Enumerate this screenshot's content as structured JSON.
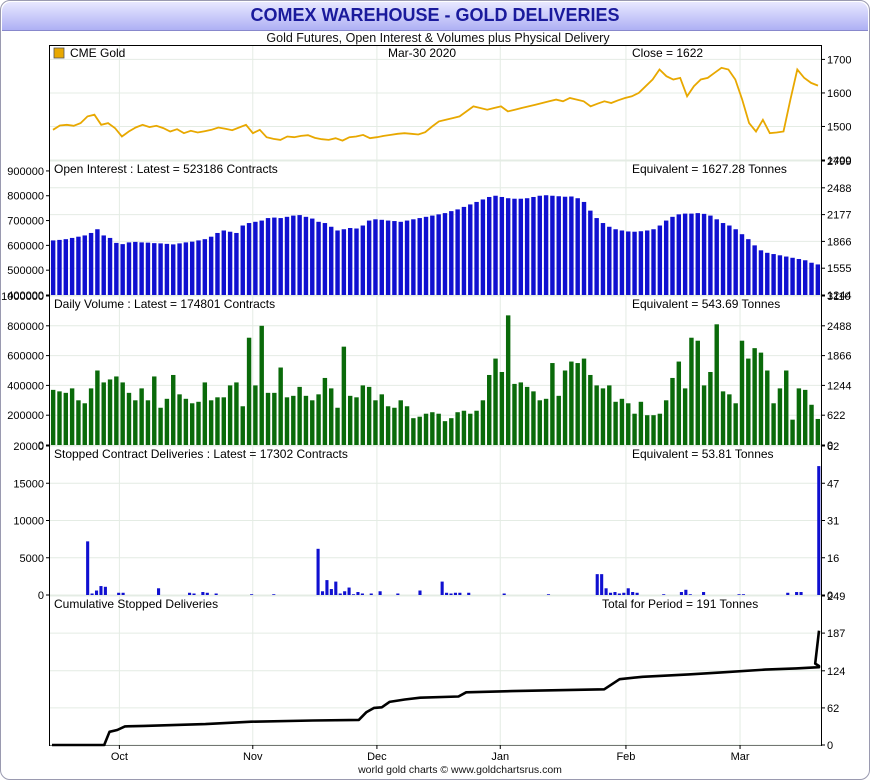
{
  "header": {
    "title": "COMEX WAREHOUSE - GOLD DELIVERIES",
    "subtitle": "Gold Futures, Open Interest & Volumes plus Physical Delivery",
    "footer": "world gold charts © www.goldchartsrus.com"
  },
  "colors": {
    "gold": "#e8a800",
    "oi": "#1010d0",
    "volume": "#0a6a0a",
    "deliveries": "#1010d0",
    "cumulative": "#000000",
    "grid": "#e4ece4"
  },
  "chart_data": [
    {
      "panel": "price",
      "type": "line",
      "legend": "CME Gold",
      "date_label": "Mar-30  2020",
      "latest_label": "Close = 1622",
      "ylim": [
        1400,
        1740
      ],
      "right_ticks": [
        "1700",
        "1600",
        "1500",
        "1400"
      ],
      "right_tick_values": [
        1700,
        1600,
        1500,
        1400
      ],
      "points": [
        1490,
        1503,
        1505,
        1502,
        1510,
        1530,
        1535,
        1505,
        1510,
        1495,
        1470,
        1485,
        1497,
        1505,
        1498,
        1502,
        1495,
        1485,
        1492,
        1480,
        1487,
        1482,
        1486,
        1490,
        1497,
        1493,
        1489,
        1497,
        1505,
        1480,
        1490,
        1468,
        1463,
        1460,
        1470,
        1468,
        1472,
        1474,
        1466,
        1462,
        1460,
        1465,
        1458,
        1468,
        1470,
        1475,
        1465,
        1468,
        1472,
        1475,
        1478,
        1480,
        1478,
        1476,
        1483,
        1500,
        1515,
        1520,
        1525,
        1530,
        1545,
        1560,
        1555,
        1550,
        1555,
        1560,
        1545,
        1550,
        1555,
        1560,
        1565,
        1570,
        1575,
        1580,
        1575,
        1585,
        1580,
        1575,
        1560,
        1568,
        1575,
        1570,
        1578,
        1585,
        1590,
        1600,
        1620,
        1640,
        1670,
        1650,
        1640,
        1645,
        1590,
        1620,
        1640,
        1645,
        1660,
        1675,
        1670,
        1640,
        1580,
        1510,
        1485,
        1520,
        1480,
        1482,
        1485,
        1580,
        1670,
        1645,
        1630,
        1622
      ]
    },
    {
      "panel": "open_interest",
      "type": "bar",
      "label": "Open Interest : Latest = 523186 Contracts",
      "equivalent": "Equivalent = 1627.28 Tonnes",
      "ylim": [
        400000,
        940000
      ],
      "left_ticks": [
        "900000",
        "800000",
        "700000",
        "600000",
        "500000",
        "400000"
      ],
      "left_tick_values": [
        900000,
        800000,
        700000,
        600000,
        500000,
        400000
      ],
      "right_ticks": [
        "2799",
        "2488",
        "2177",
        "1866",
        "1555",
        "1244"
      ],
      "values": [
        620000,
        622000,
        625000,
        630000,
        635000,
        640000,
        650000,
        665000,
        640000,
        630000,
        610000,
        605000,
        612000,
        614000,
        612000,
        611000,
        609000,
        608000,
        606000,
        604000,
        608000,
        612000,
        615000,
        620000,
        625000,
        635000,
        650000,
        660000,
        655000,
        650000,
        680000,
        690000,
        695000,
        700000,
        710000,
        712000,
        710000,
        715000,
        720000,
        722000,
        715000,
        708000,
        695000,
        690000,
        675000,
        660000,
        665000,
        670000,
        668000,
        680000,
        700000,
        705000,
        703000,
        700000,
        698000,
        695000,
        700000,
        705000,
        710000,
        715000,
        720000,
        725000,
        730000,
        738000,
        745000,
        755000,
        765000,
        775000,
        785000,
        795000,
        800000,
        795000,
        790000,
        788000,
        788000,
        790000,
        795000,
        800000,
        802000,
        800000,
        798000,
        796000,
        797000,
        790000,
        775000,
        740000,
        710000,
        690000,
        675000,
        665000,
        660000,
        656000,
        655000,
        657000,
        660000,
        665000,
        680000,
        700000,
        715000,
        725000,
        728000,
        728000,
        730000,
        727000,
        720000,
        705000,
        690000,
        680000,
        665000,
        645000,
        625000,
        600000,
        580000,
        570000,
        565000,
        560000,
        555000,
        550000,
        545000,
        540000,
        530000,
        523186
      ]
    },
    {
      "panel": "volume",
      "type": "bar",
      "label": "Daily Volume : Latest = 174801 Contracts",
      "equivalent": "Equivalent = 543.69 Tonnes",
      "ylim": [
        0,
        1000000
      ],
      "left_ticks": [
        "1000000",
        "800000",
        "600000",
        "400000",
        "200000",
        "0"
      ],
      "left_tick_values": [
        1000000,
        800000,
        600000,
        400000,
        200000,
        0
      ],
      "right_ticks": [
        "3110",
        "2488",
        "1866",
        "1244",
        "622",
        "0"
      ],
      "values": [
        370000,
        360000,
        350000,
        380000,
        300000,
        280000,
        380000,
        500000,
        420000,
        440000,
        460000,
        420000,
        350000,
        300000,
        380000,
        300000,
        460000,
        250000,
        310000,
        470000,
        340000,
        310000,
        280000,
        290000,
        420000,
        300000,
        320000,
        320000,
        400000,
        420000,
        260000,
        720000,
        400000,
        800000,
        350000,
        350000,
        520000,
        320000,
        330000,
        390000,
        330000,
        300000,
        340000,
        450000,
        380000,
        250000,
        660000,
        330000,
        320000,
        400000,
        390000,
        300000,
        340000,
        260000,
        250000,
        300000,
        260000,
        180000,
        190000,
        210000,
        220000,
        210000,
        160000,
        180000,
        220000,
        230000,
        210000,
        230000,
        300000,
        470000,
        580000,
        490000,
        870000,
        410000,
        420000,
        390000,
        360000,
        300000,
        310000,
        550000,
        330000,
        500000,
        560000,
        550000,
        580000,
        470000,
        400000,
        380000,
        400000,
        290000,
        310000,
        280000,
        210000,
        290000,
        200000,
        200000,
        210000,
        300000,
        450000,
        560000,
        380000,
        720000,
        700000,
        400000,
        490000,
        810000,
        360000,
        340000,
        280000,
        700000,
        580000,
        650000,
        620000,
        500000,
        280000,
        380000,
        500000,
        170000,
        380000,
        370000,
        270000,
        174801
      ]
    },
    {
      "panel": "deliveries",
      "type": "bar",
      "label": "Stopped Contract Deliveries : Latest = 17302 Contracts",
      "equivalent": "Equivalent = 53.81 Tonnes",
      "ylim": [
        0,
        20000
      ],
      "left_ticks": [
        "20000",
        "15000",
        "10000",
        "5000",
        "0"
      ],
      "left_tick_values": [
        20000,
        15000,
        10000,
        5000,
        0
      ],
      "right_ticks": [
        "62",
        "47",
        "31",
        "16",
        "0"
      ],
      "values": [
        0,
        0,
        0,
        0,
        0,
        0,
        0,
        0,
        7200,
        200,
        600,
        1200,
        1100,
        0,
        0,
        300,
        300,
        0,
        0,
        0,
        0,
        0,
        0,
        0,
        900,
        0,
        0,
        0,
        0,
        0,
        0,
        300,
        200,
        0,
        400,
        300,
        0,
        200,
        0,
        0,
        0,
        0,
        0,
        0,
        0,
        100,
        0,
        0,
        0,
        0,
        100,
        0,
        0,
        0,
        0,
        0,
        0,
        0,
        0,
        0,
        6200,
        500,
        2000,
        800,
        1800,
        200,
        500,
        1000,
        100,
        400,
        200,
        0,
        200,
        0,
        500,
        0,
        0,
        0,
        200,
        0,
        0,
        0,
        0,
        600,
        0,
        0,
        0,
        0,
        1800,
        300,
        200,
        300,
        300,
        0,
        300,
        0,
        0,
        0,
        0,
        0,
        0,
        0,
        200,
        0,
        0,
        0,
        0,
        0,
        0,
        0,
        0,
        0,
        100,
        0,
        0,
        0,
        0,
        0,
        0,
        0,
        0,
        0,
        0,
        2800,
        2800,
        900,
        300,
        400,
        200,
        300,
        900,
        400,
        300,
        0,
        0,
        0,
        0,
        0,
        100,
        0,
        0,
        0,
        400,
        700,
        100,
        0,
        0,
        400,
        0,
        0,
        0,
        0,
        0,
        0,
        0,
        100,
        100,
        0,
        0,
        0,
        0,
        0,
        0,
        0,
        0,
        0,
        300,
        0,
        400,
        400,
        0,
        0,
        0,
        17302
      ]
    },
    {
      "panel": "cumulative",
      "type": "line",
      "label": "Cumulative Stopped Deliveries",
      "equivalent": "Total for Period = 191 Tonnes",
      "ylim": [
        0,
        249
      ],
      "right_ticks": [
        "249",
        "187",
        "124",
        "62",
        "0"
      ],
      "right_tick_values": [
        249,
        187,
        124,
        62,
        0
      ],
      "points": [
        [
          0,
          0
        ],
        [
          0.068,
          0
        ],
        [
          0.075,
          22
        ],
        [
          0.085,
          25
        ],
        [
          0.095,
          31
        ],
        [
          0.12,
          32
        ],
        [
          0.2,
          35
        ],
        [
          0.26,
          39
        ],
        [
          0.34,
          41
        ],
        [
          0.4,
          42
        ],
        [
          0.41,
          55
        ],
        [
          0.42,
          62
        ],
        [
          0.43,
          63
        ],
        [
          0.44,
          72
        ],
        [
          0.46,
          76
        ],
        [
          0.48,
          79
        ],
        [
          0.53,
          81
        ],
        [
          0.54,
          88
        ],
        [
          0.6,
          90
        ],
        [
          0.72,
          93
        ],
        [
          0.74,
          110
        ],
        [
          0.77,
          114
        ],
        [
          0.83,
          118
        ],
        [
          0.87,
          121
        ],
        [
          0.93,
          126
        ],
        [
          0.97,
          128
        ],
        [
          1.0,
          130
        ],
        [
          1.0,
          132
        ],
        [
          0.995,
          136
        ],
        [
          1.0,
          191
        ]
      ]
    }
  ],
  "x_axis": {
    "month_labels": [
      "Oct",
      "Nov",
      "Dec",
      "Jan",
      "Feb",
      "Mar"
    ],
    "month_positions": [
      0.09,
      0.263,
      0.424,
      0.584,
      0.747,
      0.895
    ]
  }
}
